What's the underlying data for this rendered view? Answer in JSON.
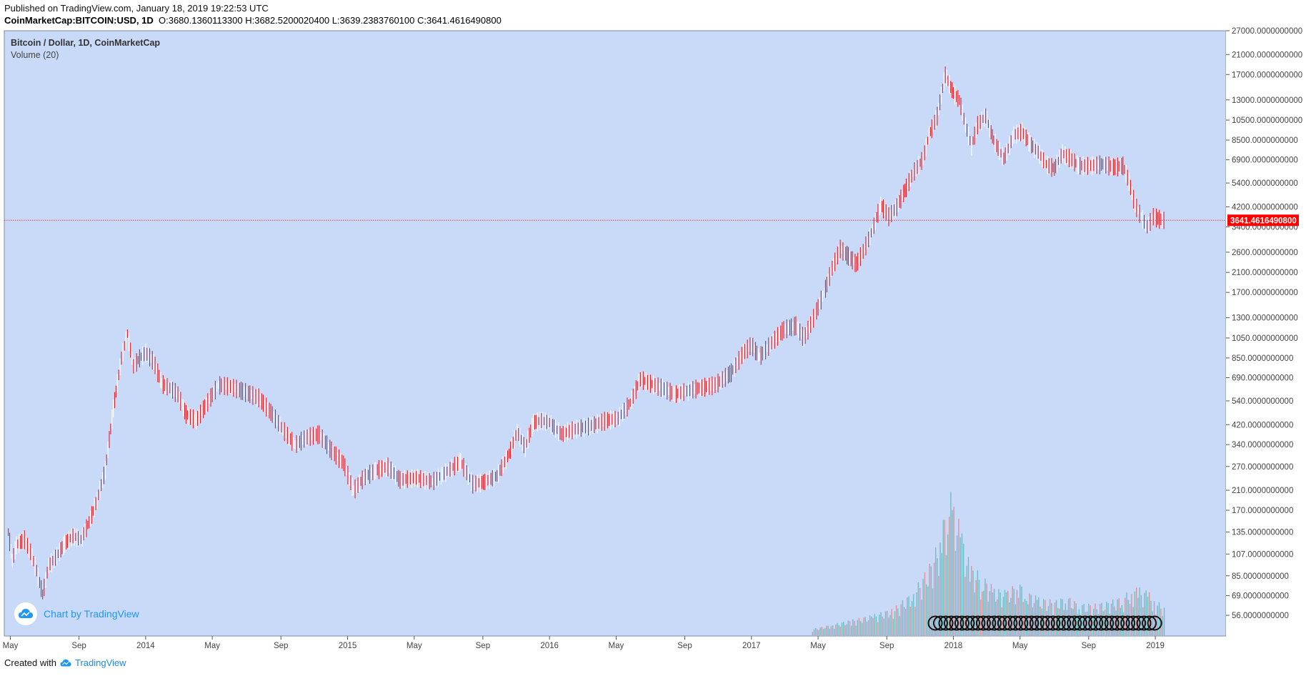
{
  "header": {
    "published": "Published on TradingView.com, January 18, 2019 19:22:53 UTC",
    "symbol": "CoinMarketCap:BITCOIN:USD, 1D",
    "o_label": "O:",
    "o_value": "3680.1360113300",
    "h_label": "H:",
    "h_value": "3682.5200020400",
    "l_label": "L:",
    "l_value": "3639.2383760100",
    "c_label": "C:",
    "c_value": "3641.4616490800"
  },
  "legend": {
    "title": "Bitcoin / Dollar, 1D, CoinMarketCap",
    "volume": "Volume (20)"
  },
  "badge": {
    "text": "Chart by TradingView"
  },
  "footer": {
    "created": "Created with",
    "brand": "TradingView"
  },
  "colors": {
    "background": "#c9daf8",
    "up": "#26a69a",
    "down": "#ef5350",
    "price_line": "#f23645",
    "price_tag": "#ff0000",
    "grid_text": "#444444"
  },
  "chart_data": {
    "type": "line",
    "title": "Bitcoin / Dollar, 1D, CoinMarketCap",
    "y_scale": "log",
    "ylim": [
      45,
      27000
    ],
    "current_price": 3641.46,
    "current_price_label": "3641.4616490800",
    "y_ticks": [
      {
        "value": 27000,
        "label": "27000.0000000000"
      },
      {
        "value": 21000,
        "label": "21000.0000000000"
      },
      {
        "value": 17000,
        "label": "17000.0000000000"
      },
      {
        "value": 13000,
        "label": "13000.0000000000"
      },
      {
        "value": 10500,
        "label": "10500.0000000000"
      },
      {
        "value": 8500,
        "label": "8500.0000000000"
      },
      {
        "value": 6900,
        "label": "6900.0000000000"
      },
      {
        "value": 5400,
        "label": "5400.0000000000"
      },
      {
        "value": 4200,
        "label": "4200.0000000000"
      },
      {
        "value": 3400,
        "label": "3400.0000000000"
      },
      {
        "value": 2600,
        "label": "2600.0000000000"
      },
      {
        "value": 2100,
        "label": "2100.0000000000"
      },
      {
        "value": 1700,
        "label": "1700.0000000000"
      },
      {
        "value": 1300,
        "label": "1300.0000000000"
      },
      {
        "value": 1050,
        "label": "1050.0000000000"
      },
      {
        "value": 850,
        "label": "850.0000000000"
      },
      {
        "value": 690,
        "label": "690.0000000000"
      },
      {
        "value": 540,
        "label": "540.0000000000"
      },
      {
        "value": 420,
        "label": "420.0000000000"
      },
      {
        "value": 340,
        "label": "340.0000000000"
      },
      {
        "value": 270,
        "label": "270.0000000000"
      },
      {
        "value": 210,
        "label": "210.0000000000"
      },
      {
        "value": 170,
        "label": "170.0000000000"
      },
      {
        "value": 135,
        "label": "135.0000000000"
      },
      {
        "value": 107,
        "label": "107.0000000000"
      },
      {
        "value": 85,
        "label": "85.0000000000"
      },
      {
        "value": 69,
        "label": "69.0000000000"
      },
      {
        "value": 56,
        "label": "56.0000000000"
      }
    ],
    "x_range": [
      2013.3,
      2019.35
    ],
    "x_ticks": [
      {
        "value": 2013.33,
        "label": "May"
      },
      {
        "value": 2013.67,
        "label": "Sep"
      },
      {
        "value": 2014.0,
        "label": "2014"
      },
      {
        "value": 2014.33,
        "label": "May"
      },
      {
        "value": 2014.67,
        "label": "Sep"
      },
      {
        "value": 2015.0,
        "label": "2015"
      },
      {
        "value": 2015.33,
        "label": "May"
      },
      {
        "value": 2015.67,
        "label": "Sep"
      },
      {
        "value": 2016.0,
        "label": "2016"
      },
      {
        "value": 2016.33,
        "label": "May"
      },
      {
        "value": 2016.67,
        "label": "Sep"
      },
      {
        "value": 2017.0,
        "label": "2017"
      },
      {
        "value": 2017.33,
        "label": "May"
      },
      {
        "value": 2017.67,
        "label": "Sep"
      },
      {
        "value": 2018.0,
        "label": "2018"
      },
      {
        "value": 2018.33,
        "label": "May"
      },
      {
        "value": 2018.67,
        "label": "Sep"
      },
      {
        "value": 2019.0,
        "label": "2019"
      }
    ],
    "series": [
      {
        "name": "BITCOIN:USD close",
        "points": [
          [
            2013.32,
            135
          ],
          [
            2013.34,
            100
          ],
          [
            2013.36,
            118
          ],
          [
            2013.4,
            125
          ],
          [
            2013.43,
            110
          ],
          [
            2013.46,
            90
          ],
          [
            2013.49,
            70
          ],
          [
            2013.52,
            95
          ],
          [
            2013.56,
            105
          ],
          [
            2013.6,
            120
          ],
          [
            2013.64,
            130
          ],
          [
            2013.68,
            125
          ],
          [
            2013.72,
            150
          ],
          [
            2013.76,
            190
          ],
          [
            2013.8,
            260
          ],
          [
            2013.84,
            500
          ],
          [
            2013.88,
            850
          ],
          [
            2013.91,
            1100
          ],
          [
            2013.94,
            780
          ],
          [
            2013.97,
            850
          ],
          [
            2014.0,
            900
          ],
          [
            2014.04,
            820
          ],
          [
            2014.08,
            650
          ],
          [
            2014.12,
            620
          ],
          [
            2014.16,
            580
          ],
          [
            2014.2,
            470
          ],
          [
            2014.25,
            440
          ],
          [
            2014.3,
            520
          ],
          [
            2014.36,
            640
          ],
          [
            2014.42,
            630
          ],
          [
            2014.48,
            600
          ],
          [
            2014.56,
            560
          ],
          [
            2014.62,
            480
          ],
          [
            2014.68,
            400
          ],
          [
            2014.74,
            340
          ],
          [
            2014.8,
            370
          ],
          [
            2014.86,
            380
          ],
          [
            2014.92,
            320
          ],
          [
            2014.98,
            280
          ],
          [
            2015.03,
            210
          ],
          [
            2015.08,
            240
          ],
          [
            2015.14,
            260
          ],
          [
            2015.2,
            270
          ],
          [
            2015.26,
            235
          ],
          [
            2015.34,
            240
          ],
          [
            2015.42,
            230
          ],
          [
            2015.5,
            260
          ],
          [
            2015.56,
            285
          ],
          [
            2015.62,
            225
          ],
          [
            2015.68,
            230
          ],
          [
            2015.74,
            245
          ],
          [
            2015.8,
            310
          ],
          [
            2015.84,
            390
          ],
          [
            2015.88,
            330
          ],
          [
            2015.92,
            430
          ],
          [
            2015.96,
            440
          ],
          [
            2016.0,
            430
          ],
          [
            2016.06,
            380
          ],
          [
            2016.12,
            400
          ],
          [
            2016.2,
            415
          ],
          [
            2016.28,
            440
          ],
          [
            2016.34,
            450
          ],
          [
            2016.4,
            530
          ],
          [
            2016.45,
            680
          ],
          [
            2016.5,
            650
          ],
          [
            2016.56,
            620
          ],
          [
            2016.62,
            580
          ],
          [
            2016.68,
            600
          ],
          [
            2016.74,
            620
          ],
          [
            2016.82,
            640
          ],
          [
            2016.9,
            730
          ],
          [
            2016.96,
            900
          ],
          [
            2017.0,
            980
          ],
          [
            2017.04,
            860
          ],
          [
            2017.1,
            1000
          ],
          [
            2017.16,
            1150
          ],
          [
            2017.22,
            1200
          ],
          [
            2017.26,
            1050
          ],
          [
            2017.3,
            1250
          ],
          [
            2017.36,
            1700
          ],
          [
            2017.4,
            2200
          ],
          [
            2017.44,
            2700
          ],
          [
            2017.48,
            2500
          ],
          [
            2017.52,
            2300
          ],
          [
            2017.56,
            2700
          ],
          [
            2017.6,
            3300
          ],
          [
            2017.64,
            4300
          ],
          [
            2017.68,
            3800
          ],
          [
            2017.72,
            4200
          ],
          [
            2017.76,
            5000
          ],
          [
            2017.8,
            6000
          ],
          [
            2017.85,
            7000
          ],
          [
            2017.88,
            9000
          ],
          [
            2017.92,
            11000
          ],
          [
            2017.96,
            17000
          ],
          [
            2018.0,
            14000
          ],
          [
            2018.03,
            13000
          ],
          [
            2018.06,
            10000
          ],
          [
            2018.09,
            8000
          ],
          [
            2018.12,
            10000
          ],
          [
            2018.16,
            11000
          ],
          [
            2018.2,
            8500
          ],
          [
            2018.25,
            7000
          ],
          [
            2018.3,
            9000
          ],
          [
            2018.34,
            9300
          ],
          [
            2018.38,
            8200
          ],
          [
            2018.42,
            7500
          ],
          [
            2018.46,
            6600
          ],
          [
            2018.5,
            6300
          ],
          [
            2018.54,
            7400
          ],
          [
            2018.58,
            7000
          ],
          [
            2018.62,
            6500
          ],
          [
            2018.68,
            6500
          ],
          [
            2018.74,
            6600
          ],
          [
            2018.8,
            6400
          ],
          [
            2018.84,
            6500
          ],
          [
            2018.87,
            5500
          ],
          [
            2018.9,
            4300
          ],
          [
            2018.93,
            3800
          ],
          [
            2018.96,
            3400
          ],
          [
            2018.99,
            3800
          ],
          [
            2019.02,
            3700
          ],
          [
            2019.05,
            3640
          ]
        ]
      }
    ],
    "volume_series": [
      {
        "name": "Volume (20)",
        "note": "relative bar heights on 0..1 scale of pane",
        "points": [
          [
            2017.3,
            0.04
          ],
          [
            2017.4,
            0.07
          ],
          [
            2017.5,
            0.1
          ],
          [
            2017.6,
            0.13
          ],
          [
            2017.7,
            0.17
          ],
          [
            2017.8,
            0.28
          ],
          [
            2017.88,
            0.45
          ],
          [
            2017.94,
            0.65
          ],
          [
            2017.97,
            0.95
          ],
          [
            2018.0,
            0.85
          ],
          [
            2018.04,
            0.65
          ],
          [
            2018.08,
            0.45
          ],
          [
            2018.14,
            0.38
          ],
          [
            2018.2,
            0.3
          ],
          [
            2018.26,
            0.28
          ],
          [
            2018.32,
            0.34
          ],
          [
            2018.36,
            0.28
          ],
          [
            2018.42,
            0.24
          ],
          [
            2018.5,
            0.22
          ],
          [
            2018.56,
            0.25
          ],
          [
            2018.62,
            0.2
          ],
          [
            2018.7,
            0.2
          ],
          [
            2018.78,
            0.22
          ],
          [
            2018.84,
            0.25
          ],
          [
            2018.88,
            0.3
          ],
          [
            2018.92,
            0.3
          ],
          [
            2018.96,
            0.28
          ],
          [
            2019.0,
            0.22
          ],
          [
            2019.05,
            0.18
          ]
        ]
      }
    ]
  }
}
